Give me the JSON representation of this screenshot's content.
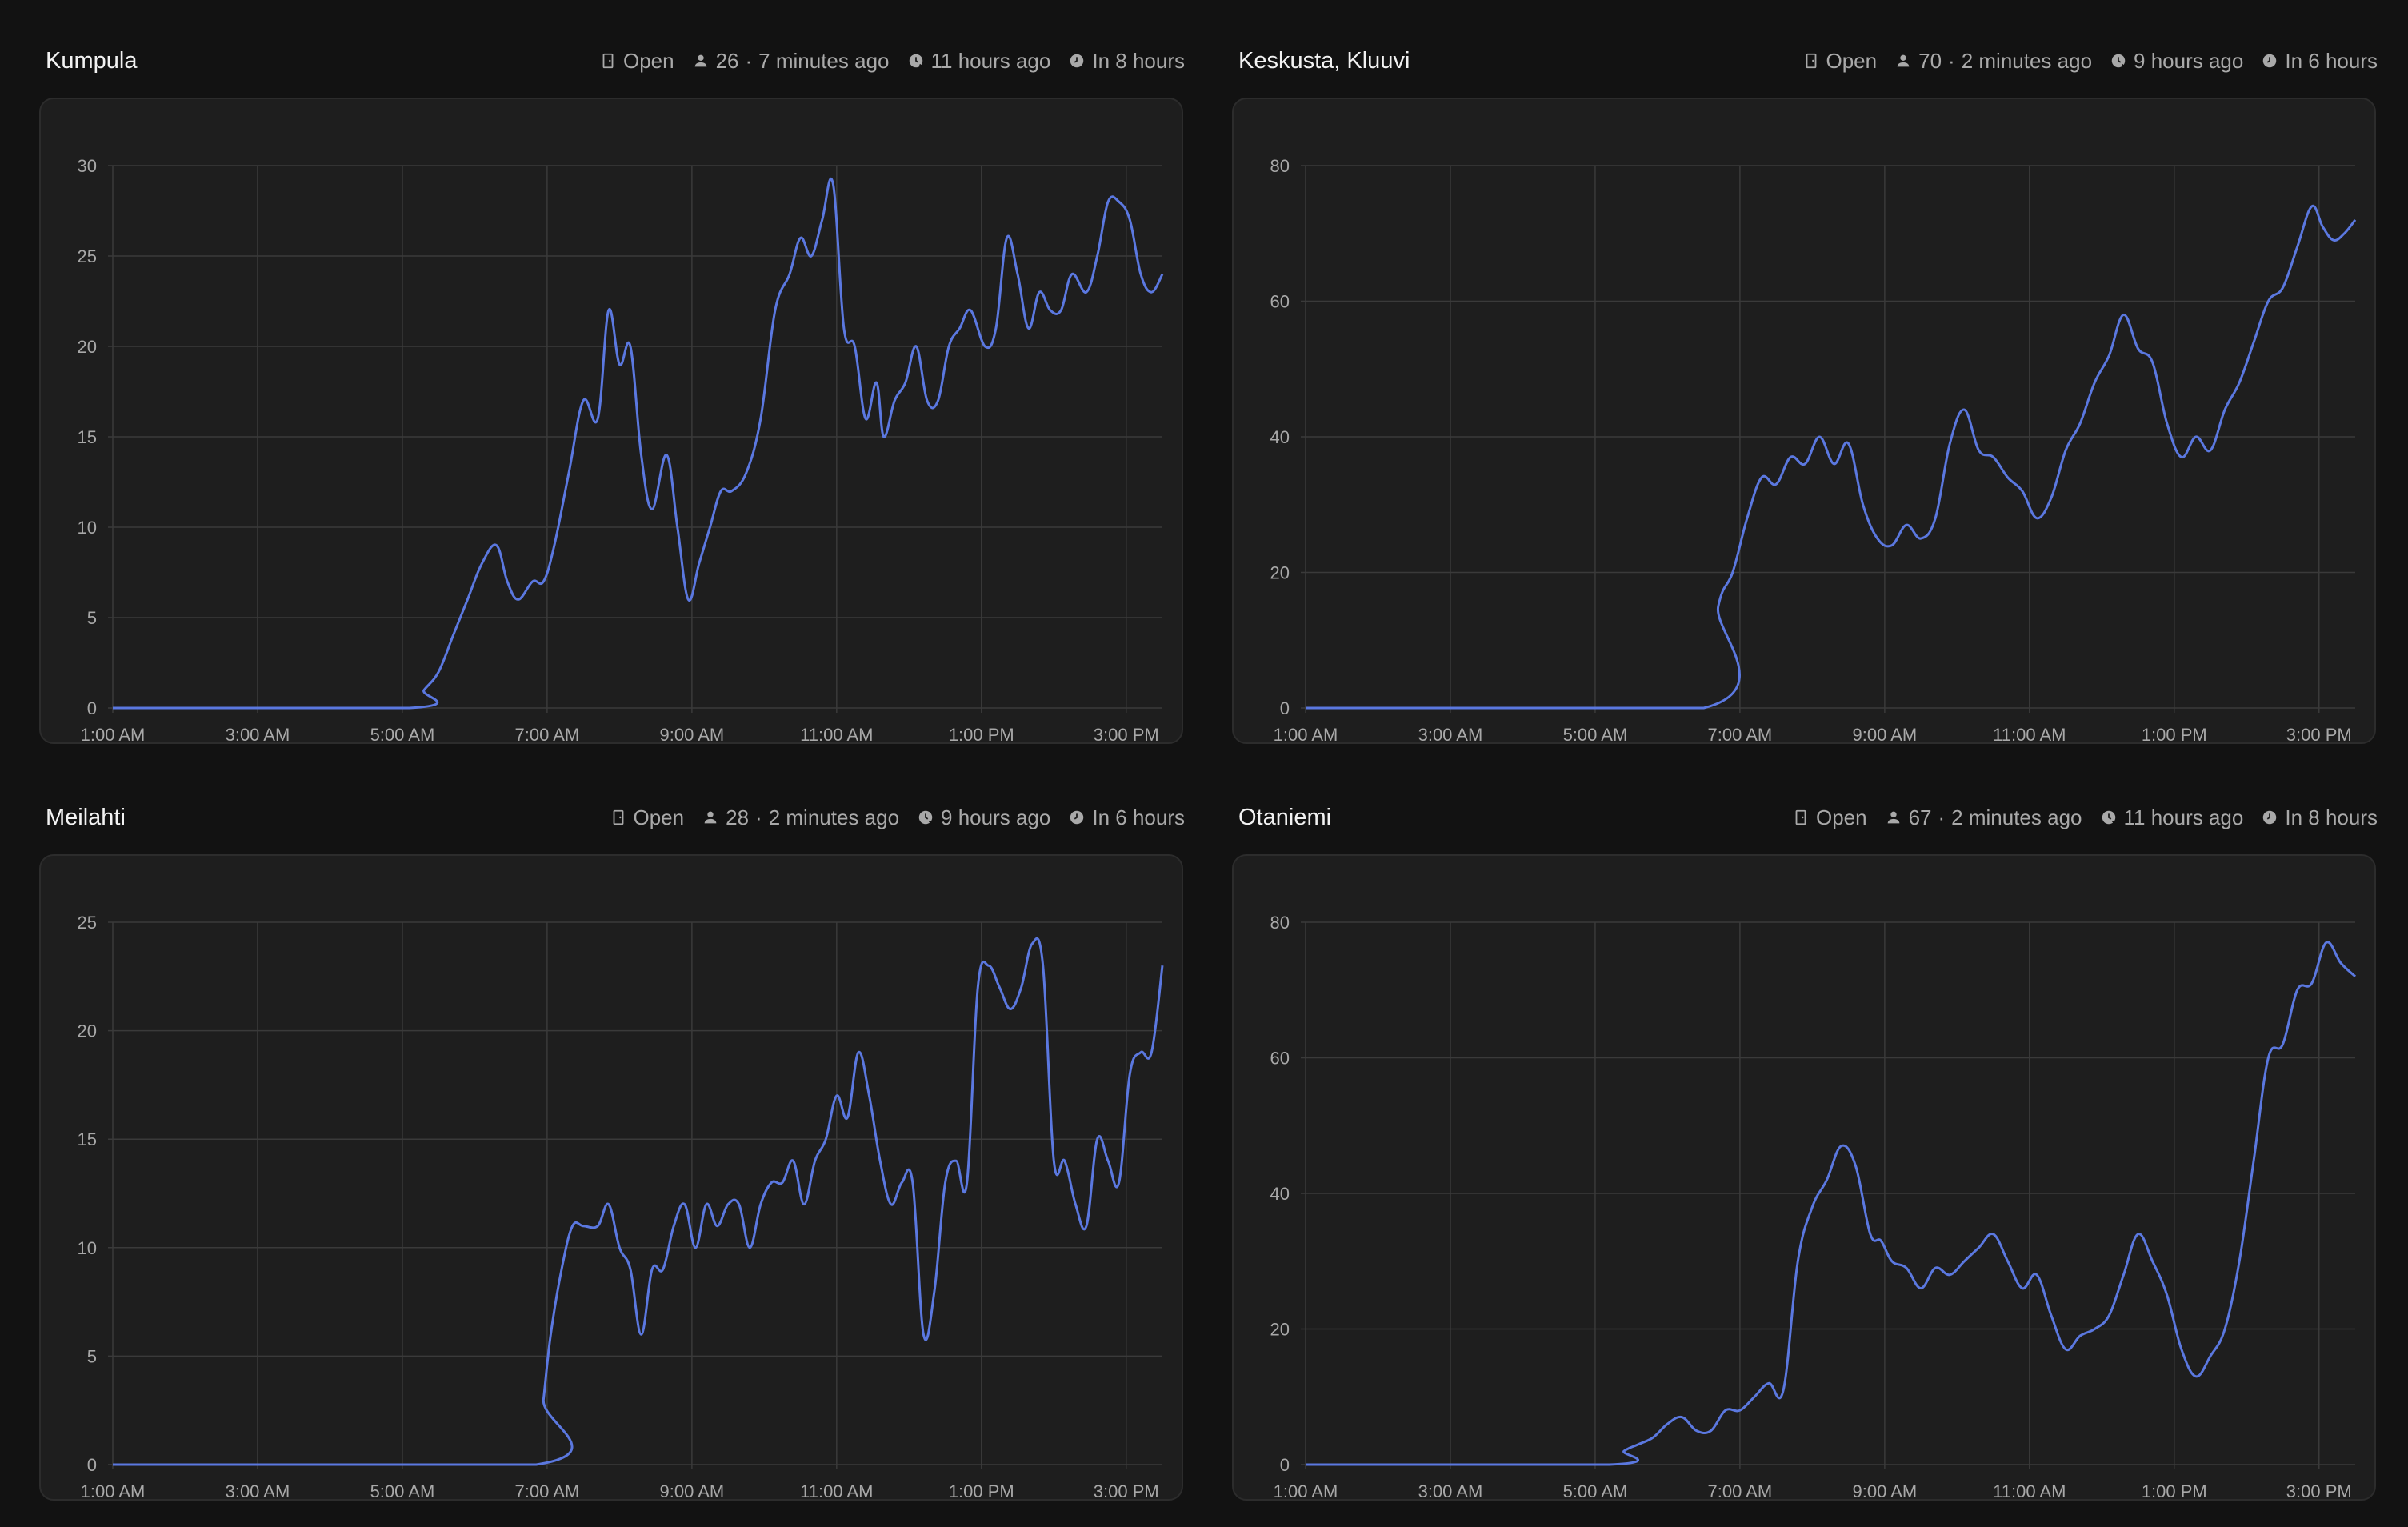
{
  "panels": [
    {
      "title": "Kumpula",
      "status": "Open",
      "count": "26",
      "updated": "7 minutes ago",
      "opened": "11 hours ago",
      "closes": "In 8 hours"
    },
    {
      "title": "Keskusta, Kluuvi",
      "status": "Open",
      "count": "70",
      "updated": "2 minutes ago",
      "opened": "9 hours ago",
      "closes": "In 6 hours"
    },
    {
      "title": "Meilahti",
      "status": "Open",
      "count": "28",
      "updated": "2 minutes ago",
      "opened": "9 hours ago",
      "closes": "In 6 hours"
    },
    {
      "title": "Otaniemi",
      "status": "Open",
      "count": "67",
      "updated": "2 minutes ago",
      "opened": "11 hours ago",
      "closes": "In 8 hours"
    }
  ],
  "colors": {
    "line": "#5b78e0",
    "grid": "#3a3a3a",
    "tick": "#a8a8a8"
  },
  "chart_data": [
    {
      "type": "line",
      "xlim": [
        1.0,
        15.5
      ],
      "ylim": [
        0,
        30
      ],
      "yticks": [
        0,
        5,
        10,
        15,
        20,
        25,
        30
      ],
      "xticks": [
        1,
        3,
        5,
        7,
        9,
        11,
        13,
        15
      ],
      "xtick_labels": [
        "1:00 AM",
        "3:00 AM",
        "5:00 AM",
        "7:00 AM",
        "9:00 AM",
        "11:00 AM",
        "1:00 PM",
        "3:00 PM"
      ],
      "x": [
        1.0,
        5.1,
        5.3,
        5.5,
        5.7,
        5.9,
        6.1,
        6.3,
        6.45,
        6.6,
        6.8,
        6.95,
        7.1,
        7.3,
        7.5,
        7.7,
        7.85,
        8.0,
        8.15,
        8.3,
        8.45,
        8.65,
        8.8,
        8.95,
        9.1,
        9.25,
        9.4,
        9.55,
        9.75,
        9.95,
        10.15,
        10.35,
        10.5,
        10.65,
        10.8,
        10.95,
        11.1,
        11.25,
        11.4,
        11.55,
        11.65,
        11.8,
        11.95,
        12.1,
        12.25,
        12.4,
        12.55,
        12.7,
        12.85,
        13.05,
        13.2,
        13.35,
        13.5,
        13.65,
        13.8,
        13.95,
        14.1,
        14.25,
        14.45,
        14.6,
        14.75,
        14.9,
        15.05,
        15.2,
        15.35,
        15.5
      ],
      "y": [
        0,
        0,
        1,
        2,
        4,
        6,
        8,
        9,
        7,
        6,
        7,
        7,
        9,
        13,
        17,
        16,
        22,
        19,
        20,
        14,
        11,
        14,
        10,
        6,
        8,
        10,
        12,
        12,
        13,
        16,
        22,
        24,
        26,
        25,
        27,
        29,
        21,
        20,
        16,
        18,
        15,
        17,
        18,
        20,
        17,
        17,
        20,
        21,
        22,
        20,
        21,
        26,
        24,
        21,
        23,
        22,
        22,
        24,
        23,
        25,
        28,
        28,
        27,
        24,
        23,
        24
      ]
    },
    {
      "type": "line",
      "xlim": [
        1.0,
        15.5
      ],
      "ylim": [
        0,
        80
      ],
      "yticks": [
        0,
        20,
        40,
        60,
        80
      ],
      "xticks": [
        1,
        3,
        5,
        7,
        9,
        11,
        13,
        15
      ],
      "xtick_labels": [
        "1:00 AM",
        "3:00 AM",
        "5:00 AM",
        "7:00 AM",
        "9:00 AM",
        "11:00 AM",
        "1:00 PM",
        "3:00 PM"
      ],
      "x": [
        1.0,
        6.5,
        6.7,
        6.9,
        7.1,
        7.3,
        7.5,
        7.7,
        7.9,
        8.1,
        8.3,
        8.5,
        8.7,
        8.9,
        9.1,
        9.3,
        9.5,
        9.7,
        9.9,
        10.1,
        10.3,
        10.5,
        10.7,
        10.9,
        11.1,
        11.3,
        11.5,
        11.7,
        11.9,
        12.1,
        12.3,
        12.5,
        12.7,
        12.9,
        13.1,
        13.3,
        13.5,
        13.7,
        13.9,
        14.1,
        14.3,
        14.5,
        14.7,
        14.9,
        15.05,
        15.2,
        15.35,
        15.5
      ],
      "y": [
        0,
        0,
        15,
        20,
        28,
        34,
        33,
        37,
        36,
        40,
        36,
        39,
        30,
        25,
        24,
        27,
        25,
        28,
        39,
        44,
        38,
        37,
        34,
        32,
        28,
        31,
        38,
        42,
        48,
        52,
        58,
        53,
        51,
        42,
        37,
        40,
        38,
        44,
        48,
        54,
        60,
        62,
        68,
        74,
        71,
        69,
        70,
        72
      ]
    },
    {
      "type": "line",
      "xlim": [
        1.0,
        15.5
      ],
      "ylim": [
        0,
        25
      ],
      "yticks": [
        0,
        5,
        10,
        15,
        20,
        25
      ],
      "xticks": [
        1,
        3,
        5,
        7,
        9,
        11,
        13,
        15
      ],
      "xtick_labels": [
        "1:00 AM",
        "3:00 AM",
        "5:00 AM",
        "7:00 AM",
        "9:00 AM",
        "11:00 AM",
        "1:00 PM",
        "3:00 PM"
      ],
      "x": [
        1.0,
        6.85,
        6.95,
        7.05,
        7.2,
        7.35,
        7.5,
        7.7,
        7.85,
        8.0,
        8.15,
        8.3,
        8.45,
        8.6,
        8.75,
        8.9,
        9.05,
        9.2,
        9.35,
        9.5,
        9.65,
        9.8,
        9.95,
        10.1,
        10.25,
        10.4,
        10.55,
        10.7,
        10.85,
        11.0,
        11.15,
        11.3,
        11.45,
        11.6,
        11.75,
        11.9,
        12.05,
        12.2,
        12.35,
        12.5,
        12.65,
        12.8,
        12.95,
        13.1,
        13.25,
        13.4,
        13.55,
        13.7,
        13.85,
        14.0,
        14.15,
        14.3,
        14.45,
        14.6,
        14.75,
        14.9,
        15.05,
        15.2,
        15.35,
        15.5
      ],
      "y": [
        0,
        0,
        3,
        6,
        9,
        11,
        11,
        11,
        12,
        10,
        9,
        6,
        9,
        9,
        11,
        12,
        10,
        12,
        11,
        12,
        12,
        10,
        12,
        13,
        13,
        14,
        12,
        14,
        15,
        17,
        16,
        19,
        17,
        14,
        12,
        13,
        13,
        6,
        8,
        13,
        14,
        13,
        22,
        23,
        22,
        21,
        22,
        24,
        23,
        14,
        14,
        12,
        11,
        15,
        14,
        13,
        18,
        19,
        19,
        23
      ]
    },
    {
      "type": "line",
      "xlim": [
        1.0,
        15.5
      ],
      "ylim": [
        0,
        80
      ],
      "yticks": [
        0,
        20,
        40,
        60,
        80
      ],
      "xticks": [
        1,
        3,
        5,
        7,
        9,
        11,
        13,
        15
      ],
      "xtick_labels": [
        "1:00 AM",
        "3:00 AM",
        "5:00 AM",
        "7:00 AM",
        "9:00 AM",
        "11:00 AM",
        "1:00 PM",
        "3:00 PM"
      ],
      "x": [
        1.0,
        5.2,
        5.4,
        5.6,
        5.8,
        6.0,
        6.2,
        6.4,
        6.6,
        6.8,
        7.0,
        7.2,
        7.4,
        7.6,
        7.8,
        8.0,
        8.2,
        8.4,
        8.6,
        8.8,
        8.95,
        9.1,
        9.3,
        9.5,
        9.7,
        9.9,
        10.1,
        10.3,
        10.5,
        10.7,
        10.9,
        11.1,
        11.3,
        11.5,
        11.7,
        11.9,
        12.1,
        12.3,
        12.5,
        12.7,
        12.9,
        13.1,
        13.3,
        13.5,
        13.7,
        13.9,
        14.1,
        14.3,
        14.5,
        14.7,
        14.9,
        15.1,
        15.3,
        15.5
      ],
      "y": [
        0,
        0,
        2,
        3,
        4,
        6,
        7,
        5,
        5,
        8,
        8,
        10,
        12,
        11,
        30,
        38,
        42,
        47,
        44,
        34,
        33,
        30,
        29,
        26,
        29,
        28,
        30,
        32,
        34,
        30,
        26,
        28,
        22,
        17,
        19,
        20,
        22,
        28,
        34,
        30,
        25,
        17,
        13,
        16,
        20,
        30,
        45,
        60,
        62,
        70,
        71,
        77,
        74,
        72
      ]
    }
  ]
}
